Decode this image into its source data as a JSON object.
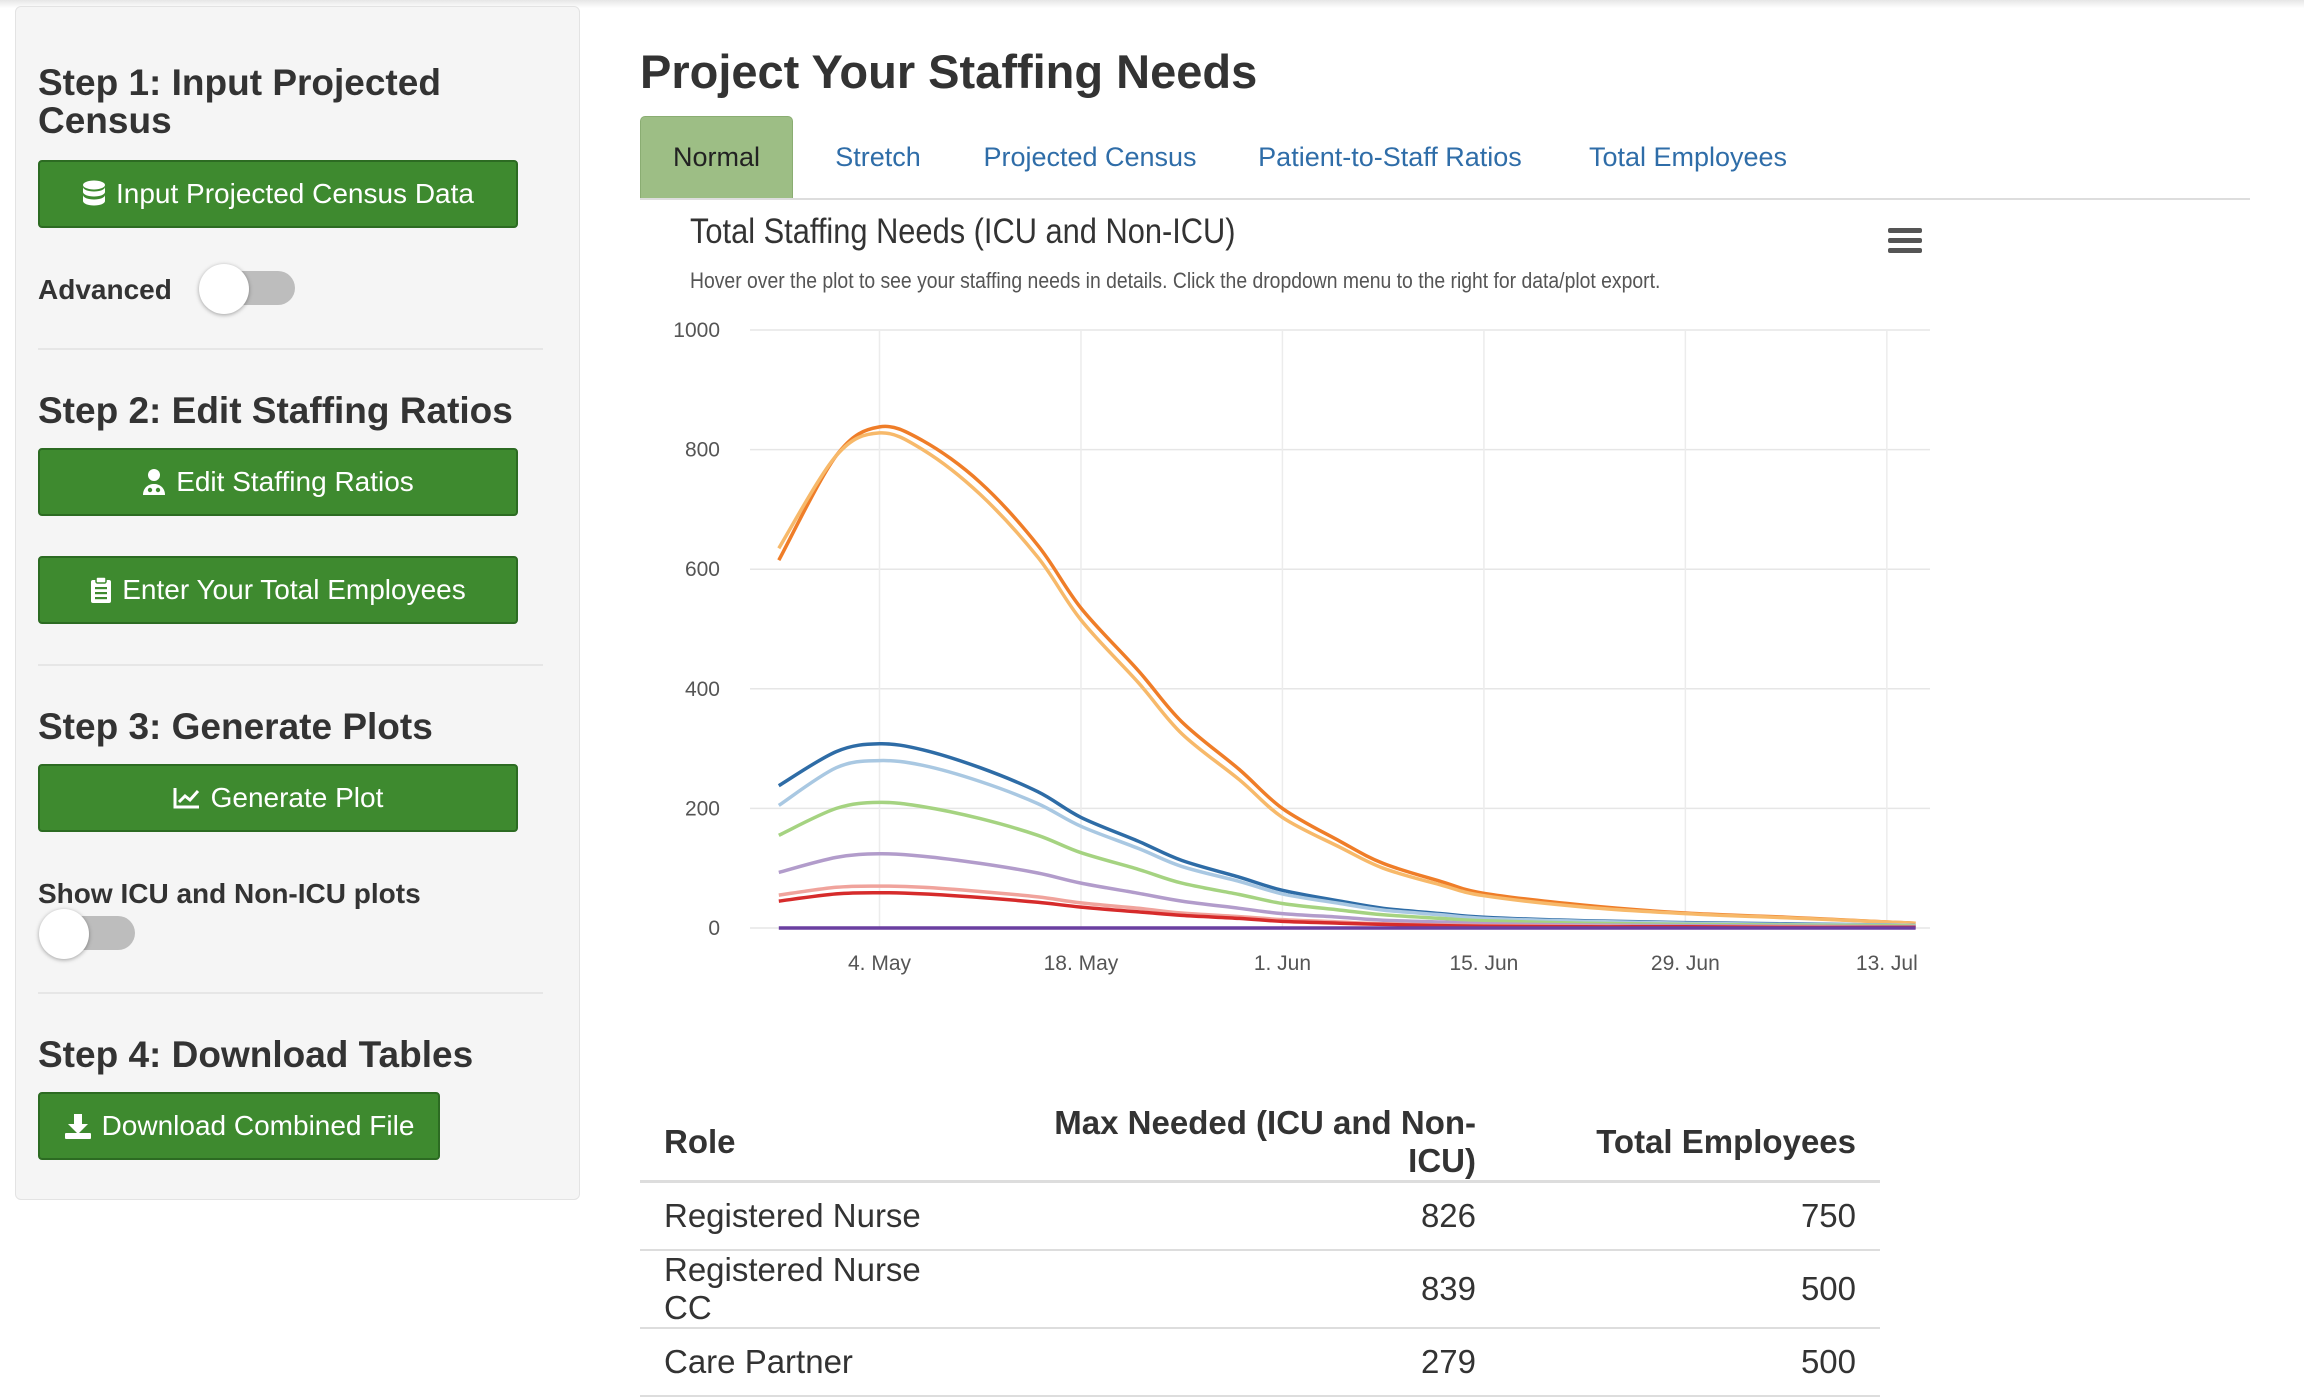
{
  "sidebar": {
    "step1": {
      "title": "Step 1: Input Projected Census",
      "button": "Input Projected Census Data",
      "advanced_label": "Advanced",
      "advanced_on": false
    },
    "step2": {
      "title": "Step 2: Edit Staffing Ratios",
      "button_ratios": "Edit Staffing Ratios",
      "button_employees": "Enter Your Total Employees"
    },
    "step3": {
      "title": "Step 3: Generate Plots",
      "button": "Generate Plot",
      "toggle_label": "Show ICU and Non-ICU plots",
      "toggle_on": false
    },
    "step4": {
      "title": "Step 4: Download Tables",
      "button": "Download Combined File"
    }
  },
  "main": {
    "title": "Project Your Staffing Needs",
    "tabs": [
      {
        "label": "Normal",
        "active": true
      },
      {
        "label": "Stretch",
        "active": false
      },
      {
        "label": "Projected Census",
        "active": false
      },
      {
        "label": "Patient-to-Staff Ratios",
        "active": false
      },
      {
        "label": "Total Employees",
        "active": false
      }
    ]
  },
  "chart_data": {
    "type": "line",
    "title": "Total Staffing Needs (ICU and Non-ICU)",
    "subtitle": "Hover over the plot to see your staffing needs in details. Click the dropdown menu to the right for data/plot export.",
    "xlabel": "",
    "ylabel": "",
    "ylim": [
      0,
      1000
    ],
    "yticks": [
      0,
      200,
      400,
      600,
      800,
      1000
    ],
    "xlim": [
      "2020-04-25",
      "2020-07-16"
    ],
    "xticks": [
      {
        "date": "2020-05-04",
        "label": "4. May"
      },
      {
        "date": "2020-05-18",
        "label": "18. May"
      },
      {
        "date": "2020-06-01",
        "label": "1. Jun"
      },
      {
        "date": "2020-06-15",
        "label": "15. Jun"
      },
      {
        "date": "2020-06-29",
        "label": "29. Jun"
      },
      {
        "date": "2020-07-13",
        "label": "13. Jul"
      }
    ],
    "grid": true,
    "legend": "none",
    "x": [
      "2020-04-27",
      "2020-05-01",
      "2020-05-04",
      "2020-05-07",
      "2020-05-11",
      "2020-05-15",
      "2020-05-18",
      "2020-05-22",
      "2020-05-25",
      "2020-05-29",
      "2020-06-01",
      "2020-06-05",
      "2020-06-08",
      "2020-06-12",
      "2020-06-15",
      "2020-06-22",
      "2020-06-29",
      "2020-07-06",
      "2020-07-13",
      "2020-07-15"
    ],
    "series": [
      {
        "color": "#ef7d28",
        "values": [
          615,
          790,
          838,
          815,
          745,
          640,
          535,
          430,
          345,
          265,
          200,
          145,
          108,
          78,
          58,
          38,
          25,
          18,
          10,
          8
        ]
      },
      {
        "color": "#f7b96a",
        "values": [
          635,
          790,
          828,
          800,
          725,
          620,
          515,
          410,
          325,
          248,
          185,
          135,
          100,
          72,
          54,
          35,
          24,
          17,
          10,
          8
        ]
      },
      {
        "color": "#2e6ca6",
        "values": [
          238,
          295,
          308,
          298,
          268,
          228,
          185,
          145,
          113,
          85,
          63,
          45,
          33,
          24,
          18,
          12,
          9,
          7,
          5,
          4
        ]
      },
      {
        "color": "#a9c8e2",
        "values": [
          205,
          268,
          280,
          272,
          245,
          208,
          170,
          133,
          103,
          78,
          57,
          41,
          30,
          22,
          16,
          11,
          8,
          6,
          5,
          4
        ]
      },
      {
        "color": "#a5d381",
        "values": [
          155,
          200,
          210,
          203,
          183,
          155,
          126,
          98,
          75,
          56,
          41,
          30,
          22,
          16,
          12,
          8,
          6,
          5,
          4,
          3
        ]
      },
      {
        "color": "#b29ccb",
        "values": [
          93,
          118,
          124,
          120,
          108,
          92,
          75,
          58,
          45,
          33,
          24,
          18,
          13,
          10,
          7,
          5,
          4,
          3,
          2,
          2
        ]
      },
      {
        "color": "#f0a39c",
        "values": [
          55,
          68,
          70,
          68,
          61,
          52,
          42,
          33,
          25,
          19,
          14,
          10,
          7,
          5,
          4,
          3,
          2,
          2,
          1,
          1
        ]
      },
      {
        "color": "#d62b2b",
        "values": [
          45,
          57,
          59,
          57,
          51,
          43,
          35,
          27,
          21,
          16,
          11,
          8,
          6,
          4,
          3,
          2,
          2,
          1,
          1,
          1
        ]
      },
      {
        "color": "#6a3fa0",
        "values": [
          0,
          0,
          0,
          0,
          0,
          0,
          0,
          0,
          0,
          0,
          0,
          0,
          0,
          0,
          0,
          0,
          0,
          0,
          0,
          0
        ]
      }
    ]
  },
  "table": {
    "headers": [
      "Role",
      "Max Needed (ICU and Non-ICU)",
      "Total Employees"
    ],
    "rows": [
      [
        "Registered Nurse",
        "826",
        "750"
      ],
      [
        "Registered Nurse CC",
        "839",
        "500"
      ],
      [
        "Care Partner",
        "279",
        "500"
      ]
    ]
  }
}
